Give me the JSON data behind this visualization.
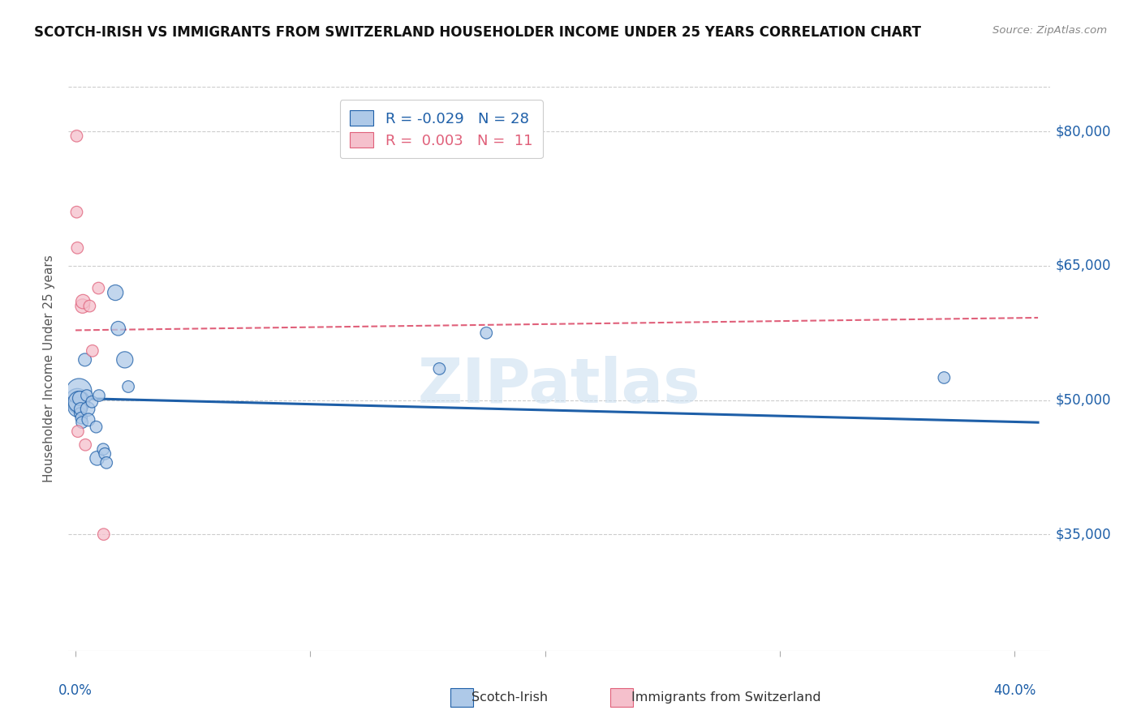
{
  "title": "SCOTCH-IRISH VS IMMIGRANTS FROM SWITZERLAND HOUSEHOLDER INCOME UNDER 25 YEARS CORRELATION CHART",
  "source": "Source: ZipAtlas.com",
  "ylabel": "Householder Income Under 25 years",
  "ytick_labels": [
    "$80,000",
    "$65,000",
    "$50,000",
    "$35,000"
  ],
  "ytick_values": [
    80000,
    65000,
    50000,
    35000
  ],
  "ymin": 22000,
  "ymax": 85000,
  "xmin": -0.003,
  "xmax": 0.415,
  "watermark": "ZIPatlas",
  "series1_label": "Scotch-Irish",
  "series1_R": "-0.029",
  "series1_N": "28",
  "series1_color": "#aec9e8",
  "series1_line_color": "#1e5fa8",
  "series2_label": "Immigrants from Switzerland",
  "series2_R": "0.003",
  "series2_N": "11",
  "series2_color": "#f5c0cc",
  "series2_line_color": "#e0607a",
  "scotch_irish_x": [
    0.0008,
    0.0008,
    0.001,
    0.0015,
    0.0015,
    0.0018,
    0.002,
    0.0022,
    0.0025,
    0.0028,
    0.004,
    0.0048,
    0.0052,
    0.0055,
    0.007,
    0.0088,
    0.0092,
    0.01,
    0.0118,
    0.0125,
    0.0132,
    0.017,
    0.0182,
    0.021,
    0.0225,
    0.155,
    0.175,
    0.37
  ],
  "scotch_irish_y": [
    49500,
    50000,
    49200,
    51000,
    49800,
    50200,
    48500,
    49000,
    48000,
    47500,
    54500,
    50500,
    49000,
    47800,
    49800,
    47000,
    43500,
    50500,
    44500,
    44000,
    43000,
    62000,
    58000,
    54500,
    51500,
    53500,
    57500,
    52500
  ],
  "scotch_irish_size": [
    250,
    420,
    300,
    500,
    360,
    160,
    110,
    130,
    110,
    110,
    130,
    110,
    160,
    130,
    110,
    110,
    160,
    110,
    110,
    110,
    110,
    190,
    160,
    210,
    110,
    110,
    110,
    110
  ],
  "swiss_x": [
    0.0005,
    0.0005,
    0.0008,
    0.001,
    0.003,
    0.0032,
    0.0042,
    0.006,
    0.0072,
    0.0098,
    0.012
  ],
  "swiss_y": [
    79500,
    71000,
    67000,
    46500,
    60500,
    61000,
    45000,
    60500,
    55500,
    62500,
    35000
  ],
  "swiss_size": [
    110,
    110,
    110,
    110,
    160,
    160,
    110,
    110,
    110,
    110,
    110
  ],
  "blue_trendline_x": [
    0.0,
    0.41
  ],
  "blue_trendline_y": [
    50200,
    47500
  ],
  "pink_trendline_x": [
    0.0,
    0.41
  ],
  "pink_trendline_y": [
    57800,
    59200
  ],
  "title_color": "#111111",
  "axis_color": "#1e5fa8",
  "grid_color": "#cccccc",
  "tick_color": "#aaaaaa"
}
